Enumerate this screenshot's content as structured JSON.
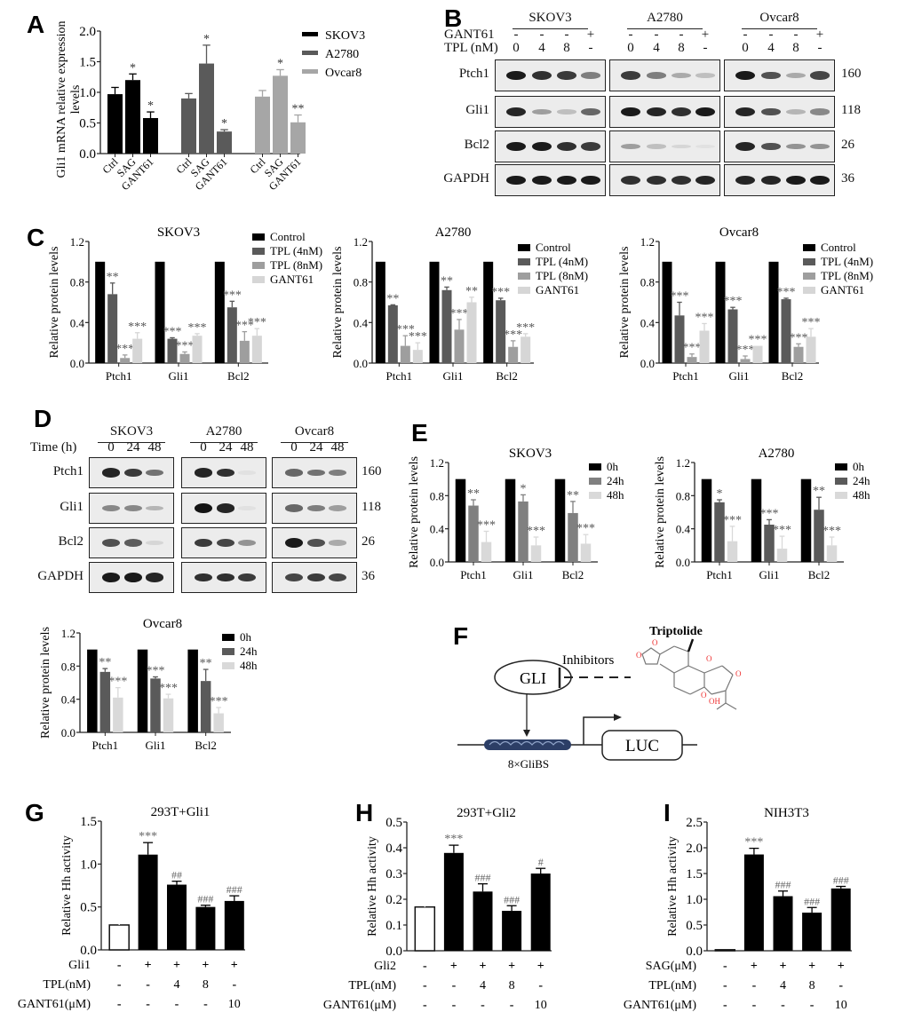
{
  "panels": {
    "A": {
      "letter": "A"
    },
    "B": {
      "letter": "B"
    },
    "C": {
      "letter": "C"
    },
    "D": {
      "letter": "D"
    },
    "E": {
      "letter": "E"
    },
    "F": {
      "letter": "F"
    },
    "G": {
      "letter": "G"
    },
    "H": {
      "letter": "H"
    },
    "I": {
      "letter": "I"
    }
  },
  "blotB": {
    "cell_lines": [
      "SKOV3",
      "A2780",
      "Ovcar8"
    ],
    "row_gant61_label": "GANT61",
    "row_tpl_label": "TPL  (nM)",
    "gant61": [
      "-",
      "-",
      "-",
      "+"
    ],
    "tpl": [
      "0",
      "4",
      "8",
      "-"
    ],
    "proteins": [
      "Ptch1",
      "Gli1",
      "Bcl2",
      "GAPDH"
    ],
    "mw": [
      "160",
      "118",
      "26",
      "36"
    ]
  },
  "blotD": {
    "cell_lines": [
      "SKOV3",
      "A2780",
      "Ovcar8"
    ],
    "time_label": "Time (h)",
    "times": [
      "0",
      "24",
      "48"
    ],
    "proteins": [
      "Ptch1",
      "Gli1",
      "Bcl2",
      "GAPDH"
    ],
    "mw": [
      "160",
      "118",
      "26",
      "36"
    ]
  },
  "diagramF": {
    "gli": "GLI",
    "inhibitors": "Inhibitors",
    "compound": "Triptolide",
    "luc": "LUC",
    "binding_sites": "8×GliBS",
    "oh": "OH",
    "o": "O"
  },
  "chart_data": [
    {
      "id": "A",
      "type": "bar",
      "title": "",
      "ylabel": "Gli1 mRNA relative expression levels",
      "ylim": [
        0,
        2.0
      ],
      "yticks": [
        "0.0",
        "0.5",
        "1.0",
        "1.5",
        "2.0"
      ],
      "groups": [
        {
          "name": "SKOV3",
          "color": "#000000",
          "categories": [
            "Ctrl",
            "SAG",
            "GANT61"
          ],
          "values": [
            0.97,
            1.2,
            0.58
          ],
          "errors": [
            0.11,
            0.1,
            0.1
          ],
          "sig": [
            "",
            "*",
            "*"
          ]
        },
        {
          "name": "A2780",
          "color": "#5a5a5a",
          "categories": [
            "Ctrl",
            "SAG",
            "GANT61"
          ],
          "values": [
            0.9,
            1.47,
            0.36
          ],
          "errors": [
            0.08,
            0.3,
            0.03
          ],
          "sig": [
            "",
            "*",
            "*"
          ]
        },
        {
          "name": "Ovcar8",
          "color": "#a6a6a6",
          "categories": [
            "Ctrl",
            "SAG",
            "GANT61"
          ],
          "values": [
            0.93,
            1.27,
            0.51
          ],
          "errors": [
            0.1,
            0.1,
            0.12
          ],
          "sig": [
            "",
            "*",
            "**"
          ]
        }
      ],
      "legend": [
        "SKOV3",
        "A2780",
        "Ovcar8"
      ]
    },
    {
      "id": "C-SKOV3",
      "type": "bar",
      "title": "SKOV3",
      "ylabel": "Relative protein levels",
      "ylim": [
        0,
        1.2
      ],
      "yticks": [
        "0.0",
        "0.4",
        "0.8",
        "1.2"
      ],
      "categories": [
        "Ptch1",
        "Gli1",
        "Bcl2"
      ],
      "series": [
        {
          "name": "Control",
          "color": "#000000",
          "values": [
            1.0,
            1.0,
            1.0
          ],
          "errors": [
            0,
            0,
            0
          ],
          "sig": [
            "",
            "",
            ""
          ]
        },
        {
          "name": "TPL (4nM)",
          "color": "#5a5a5a",
          "values": [
            0.68,
            0.24,
            0.55
          ],
          "errors": [
            0.11,
            0.01,
            0.06
          ],
          "sig": [
            "**",
            "***",
            "***"
          ]
        },
        {
          "name": "TPL (8nM)",
          "color": "#9e9e9e",
          "values": [
            0.05,
            0.09,
            0.22
          ],
          "errors": [
            0.03,
            0.02,
            0.09
          ],
          "sig": [
            "***",
            "***",
            "***"
          ]
        },
        {
          "name": "GANT61",
          "color": "#d6d6d6",
          "values": [
            0.24,
            0.27,
            0.27
          ],
          "errors": [
            0.06,
            0.02,
            0.07
          ],
          "sig": [
            "***",
            "***",
            "***"
          ]
        }
      ]
    },
    {
      "id": "C-A2780",
      "type": "bar",
      "title": "A2780",
      "ylabel": "Relative protein levels",
      "ylim": [
        0,
        1.2
      ],
      "yticks": [
        "0.0",
        "0.4",
        "0.8",
        "1.2"
      ],
      "categories": [
        "Ptch1",
        "Gli1",
        "Bcl2"
      ],
      "series": [
        {
          "name": "Control",
          "color": "#000000",
          "values": [
            1.0,
            1.0,
            1.0
          ],
          "errors": [
            0,
            0,
            0
          ],
          "sig": [
            "",
            "",
            ""
          ]
        },
        {
          "name": "TPL (4nM)",
          "color": "#5a5a5a",
          "values": [
            0.57,
            0.72,
            0.62
          ],
          "errors": [
            0.005,
            0.03,
            0.02
          ],
          "sig": [
            "**",
            "**",
            "***"
          ]
        },
        {
          "name": "TPL (8nM)",
          "color": "#9e9e9e",
          "values": [
            0.17,
            0.33,
            0.16
          ],
          "errors": [
            0.1,
            0.1,
            0.06
          ],
          "sig": [
            "***",
            "***",
            "***"
          ]
        },
        {
          "name": "GANT61",
          "color": "#d6d6d6",
          "values": [
            0.13,
            0.6,
            0.26
          ],
          "errors": [
            0.07,
            0.05,
            0.03
          ],
          "sig": [
            "***",
            "**",
            "***"
          ]
        }
      ]
    },
    {
      "id": "C-Ovcar8",
      "type": "bar",
      "title": "Ovcar8",
      "ylabel": "Relative protein levels",
      "ylim": [
        0,
        1.2
      ],
      "yticks": [
        "0.0",
        "0.4",
        "0.8",
        "1.2"
      ],
      "categories": [
        "Ptch1",
        "Gli1",
        "Bcl2"
      ],
      "series": [
        {
          "name": "Control",
          "color": "#000000",
          "values": [
            1.0,
            1.0,
            1.0
          ],
          "errors": [
            0,
            0,
            0
          ],
          "sig": [
            "",
            "",
            ""
          ]
        },
        {
          "name": "TPL (4nM)",
          "color": "#5a5a5a",
          "values": [
            0.47,
            0.53,
            0.63
          ],
          "errors": [
            0.13,
            0.02,
            0.01
          ],
          "sig": [
            "***",
            "***",
            "***"
          ]
        },
        {
          "name": "TPL (8nM)",
          "color": "#9e9e9e",
          "values": [
            0.06,
            0.04,
            0.16
          ],
          "errors": [
            0.03,
            0.03,
            0.03
          ],
          "sig": [
            "***",
            "***",
            "***"
          ]
        },
        {
          "name": "GANT61",
          "color": "#d6d6d6",
          "values": [
            0.32,
            0.17,
            0.26
          ],
          "errors": [
            0.07,
            0.0,
            0.08
          ],
          "sig": [
            "***",
            "***",
            "***"
          ]
        }
      ]
    },
    {
      "id": "E-SKOV3",
      "type": "bar",
      "title": "SKOV3",
      "ylabel": "Relative protein levels",
      "ylim": [
        0,
        1.2
      ],
      "yticks": [
        "0.0",
        "0.4",
        "0.8",
        "1.2"
      ],
      "categories": [
        "Ptch1",
        "Gli1",
        "Bcl2"
      ],
      "series": [
        {
          "name": "0h",
          "color": "#000000",
          "values": [
            1.0,
            1.0,
            1.0
          ],
          "errors": [
            0,
            0,
            0
          ],
          "sig": [
            "",
            "",
            ""
          ]
        },
        {
          "name": "24h",
          "color": "#808080",
          "values": [
            0.68,
            0.73,
            0.59
          ],
          "errors": [
            0.07,
            0.08,
            0.14
          ],
          "sig": [
            "**",
            "*",
            "**"
          ]
        },
        {
          "name": "48h",
          "color": "#d9d9d9",
          "values": [
            0.24,
            0.2,
            0.22
          ],
          "errors": [
            0.13,
            0.1,
            0.11
          ],
          "sig": [
            "***",
            "***",
            "***"
          ]
        }
      ]
    },
    {
      "id": "E-A2780",
      "type": "bar",
      "title": "A2780",
      "ylabel": "Relative protein levels",
      "ylim": [
        0,
        1.2
      ],
      "yticks": [
        "0.0",
        "0.4",
        "0.8",
        "1.2"
      ],
      "categories": [
        "Ptch1",
        "Gli1",
        "Bcl2"
      ],
      "series": [
        {
          "name": "0h",
          "color": "#000000",
          "values": [
            1.0,
            1.0,
            1.0
          ],
          "errors": [
            0,
            0,
            0
          ],
          "sig": [
            "",
            "",
            ""
          ]
        },
        {
          "name": "24h",
          "color": "#5a5a5a",
          "values": [
            0.72,
            0.45,
            0.63
          ],
          "errors": [
            0.03,
            0.06,
            0.15
          ],
          "sig": [
            "*",
            "***",
            "**"
          ]
        },
        {
          "name": "48h",
          "color": "#d9d9d9",
          "values": [
            0.25,
            0.16,
            0.2
          ],
          "errors": [
            0.18,
            0.15,
            0.1
          ],
          "sig": [
            "***",
            "***",
            "***"
          ]
        }
      ]
    },
    {
      "id": "E-Ovcar8",
      "type": "bar",
      "title": "Ovcar8",
      "ylabel": "Relative protein levels",
      "ylim": [
        0,
        1.2
      ],
      "yticks": [
        "0.0",
        "0.4",
        "0.8",
        "1.2"
      ],
      "categories": [
        "Ptch1",
        "Gli1",
        "Bcl2"
      ],
      "series": [
        {
          "name": "0h",
          "color": "#000000",
          "values": [
            1.0,
            1.0,
            1.0
          ],
          "errors": [
            0,
            0,
            0
          ],
          "sig": [
            "",
            "",
            ""
          ]
        },
        {
          "name": "24h",
          "color": "#5a5a5a",
          "values": [
            0.73,
            0.65,
            0.62
          ],
          "errors": [
            0.04,
            0.02,
            0.14
          ],
          "sig": [
            "**",
            "***",
            "**"
          ]
        },
        {
          "name": "48h",
          "color": "#d9d9d9",
          "values": [
            0.42,
            0.41,
            0.23
          ],
          "errors": [
            0.12,
            0.05,
            0.07
          ],
          "sig": [
            "***",
            "***",
            "***"
          ]
        }
      ]
    },
    {
      "id": "G",
      "type": "bar",
      "title": "293T+Gli1",
      "ylabel": "Relative Hh activity",
      "ylim": [
        0,
        1.5
      ],
      "yticks": [
        "0.0",
        "0.5",
        "1.0",
        "1.5"
      ],
      "values": [
        0.29,
        1.11,
        0.76,
        0.5,
        0.57
      ],
      "errors": [
        0.05,
        0.14,
        0.04,
        0.02,
        0.06
      ],
      "fills": [
        "#ffffff",
        "#000000",
        "#000000",
        "#000000",
        "#000000"
      ],
      "sig": [
        "",
        "***",
        "##",
        "###",
        "###"
      ],
      "conditions": [
        {
          "label": "Gli1",
          "values": [
            "-",
            "+",
            "+",
            "+",
            "+"
          ]
        },
        {
          "label": "TPL(nM)",
          "values": [
            "-",
            "-",
            "4",
            "8",
            "-"
          ]
        },
        {
          "label": "GANT61(μM)",
          "values": [
            "-",
            "-",
            "-",
            "-",
            "10"
          ]
        }
      ]
    },
    {
      "id": "H",
      "type": "bar",
      "title": "293T+Gli2",
      "ylabel": "Relative Hh activity",
      "ylim": [
        0,
        0.5
      ],
      "yticks": [
        "0.0",
        "0.1",
        "0.2",
        "0.3",
        "0.4",
        "0.5"
      ],
      "values": [
        0.17,
        0.38,
        0.23,
        0.155,
        0.3
      ],
      "errors": [
        0.02,
        0.03,
        0.03,
        0.02,
        0.02
      ],
      "fills": [
        "#ffffff",
        "#000000",
        "#000000",
        "#000000",
        "#000000"
      ],
      "sig": [
        "",
        "***",
        "###",
        "###",
        "#"
      ],
      "conditions": [
        {
          "label": "Gli2",
          "values": [
            "-",
            "+",
            "+",
            "+",
            "+"
          ]
        },
        {
          "label": "TPL(nM)",
          "values": [
            "-",
            "-",
            "4",
            "8",
            "-"
          ]
        },
        {
          "label": "GANT61(μM)",
          "values": [
            "-",
            "-",
            "-",
            "-",
            "10"
          ]
        }
      ]
    },
    {
      "id": "I",
      "type": "bar",
      "title": "NIH3T3",
      "ylabel": "Relative Hh activity",
      "ylim": [
        0,
        2.5
      ],
      "yticks": [
        "0.0",
        "0.5",
        "1.0",
        "1.5",
        "2.0",
        "2.5"
      ],
      "values": [
        0.02,
        1.87,
        1.06,
        0.74,
        1.21
      ],
      "errors": [
        0.0,
        0.12,
        0.1,
        0.1,
        0.04
      ],
      "fills": [
        "#ffffff",
        "#000000",
        "#000000",
        "#000000",
        "#000000"
      ],
      "sig": [
        "",
        "***",
        "###",
        "###",
        "###"
      ],
      "conditions": [
        {
          "label": "SAG(μM)",
          "values": [
            "-",
            "+",
            "+",
            "+",
            "+"
          ]
        },
        {
          "label": "TPL(nM)",
          "values": [
            "-",
            "-",
            "4",
            "8",
            "-"
          ]
        },
        {
          "label": "GANT61(μM)",
          "values": [
            "-",
            "-",
            "-",
            "-",
            "10"
          ]
        }
      ]
    }
  ]
}
